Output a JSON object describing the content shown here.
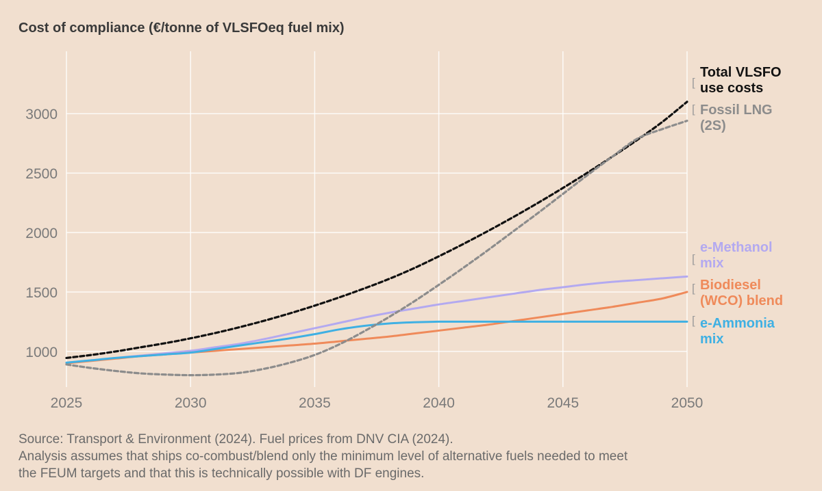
{
  "chart_data": {
    "type": "line",
    "title": "Cost of compliance (€/tonne of VLSFOeq fuel mix)",
    "xlabel": "",
    "ylabel": "",
    "xlim": [
      2025,
      2050
    ],
    "ylim": [
      700,
      3450
    ],
    "x_ticks": [
      2025,
      2030,
      2035,
      2040,
      2045,
      2050
    ],
    "y_ticks": [
      1000,
      1500,
      2000,
      2500,
      3000
    ],
    "x": [
      2025,
      2026,
      2027,
      2028,
      2029,
      2030,
      2031,
      2032,
      2033,
      2034,
      2035,
      2036,
      2037,
      2038,
      2039,
      2040,
      2041,
      2042,
      2043,
      2044,
      2045,
      2046,
      2047,
      2048,
      2049,
      2050
    ],
    "series": [
      {
        "name": "Total VLSFO use costs",
        "label_lines": [
          "Total VLSFO",
          "use costs"
        ],
        "color": "#111111",
        "dashed": true,
        "values": [
          945,
          970,
          1000,
          1035,
          1070,
          1110,
          1155,
          1205,
          1260,
          1320,
          1385,
          1455,
          1530,
          1610,
          1700,
          1800,
          1905,
          2015,
          2130,
          2250,
          2375,
          2505,
          2640,
          2780,
          2930,
          3100
        ]
      },
      {
        "name": "Fossil LNG (2S)",
        "label_lines": [
          "Fossil LNG",
          "(2S)"
        ],
        "color": "#8c8c8c",
        "dashed": true,
        "values": [
          890,
          860,
          835,
          815,
          805,
          800,
          805,
          820,
          855,
          905,
          970,
          1060,
          1170,
          1290,
          1420,
          1560,
          1705,
          1855,
          2010,
          2165,
          2325,
          2485,
          2640,
          2790,
          2870,
          2940
        ]
      },
      {
        "name": "e-Methanol mix",
        "label_lines": [
          "e-Methanol",
          "mix"
        ],
        "color": "#b3a9f0",
        "dashed": false,
        "values": [
          905,
          925,
          945,
          965,
          985,
          1005,
          1035,
          1065,
          1105,
          1150,
          1195,
          1240,
          1285,
          1325,
          1360,
          1395,
          1425,
          1455,
          1485,
          1515,
          1540,
          1565,
          1585,
          1600,
          1615,
          1630
        ]
      },
      {
        "name": "Biodiesel (WCO) blend",
        "label_lines": [
          "Biodiesel",
          "(WCO) blend"
        ],
        "color": "#ef8a5a",
        "dashed": false,
        "values": [
          900,
          920,
          940,
          960,
          975,
          990,
          1005,
          1020,
          1035,
          1050,
          1065,
          1085,
          1105,
          1125,
          1150,
          1175,
          1200,
          1225,
          1255,
          1285,
          1315,
          1345,
          1375,
          1410,
          1445,
          1500
        ]
      },
      {
        "name": "e-Ammonia mix",
        "label_lines": [
          "e-Ammonia",
          "mix"
        ],
        "color": "#3fb0e3",
        "dashed": false,
        "values": [
          905,
          925,
          945,
          960,
          975,
          990,
          1020,
          1050,
          1080,
          1110,
          1145,
          1185,
          1215,
          1235,
          1245,
          1250,
          1250,
          1250,
          1250,
          1250,
          1250,
          1250,
          1250,
          1250,
          1250,
          1250
        ]
      }
    ]
  },
  "source": {
    "line1": "Source: Transport & Environment (2024). Fuel prices from DNV CIA (2024).",
    "line2": "Analysis assumes that ships co-combust/blend only the minimum level of alternative fuels needed to meet",
    "line3": "the FEUM targets and that this is technically possible with DF engines."
  },
  "bracket_glyph": "["
}
